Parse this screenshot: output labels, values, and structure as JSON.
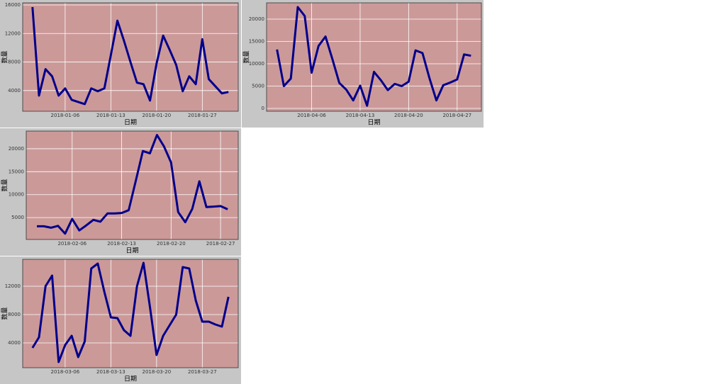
{
  "chart_data": [
    {
      "type": "line",
      "x_label": "日期",
      "y_label": "数量",
      "color": "#00008b",
      "grid": true,
      "x": [
        "2018-01-01",
        "2018-01-02",
        "2018-01-03",
        "2018-01-04",
        "2018-01-05",
        "2018-01-06",
        "2018-01-07",
        "2018-01-08",
        "2018-01-09",
        "2018-01-10",
        "2018-01-11",
        "2018-01-12",
        "2018-01-13",
        "2018-01-14",
        "2018-01-15",
        "2018-01-16",
        "2018-01-17",
        "2018-01-18",
        "2018-01-19",
        "2018-01-20",
        "2018-01-21",
        "2018-01-22",
        "2018-01-23",
        "2018-01-24",
        "2018-01-25",
        "2018-01-26",
        "2018-01-27",
        "2018-01-28",
        "2018-01-29",
        "2018-01-30",
        "2018-01-31"
      ],
      "values": [
        15700,
        3300,
        7000,
        6000,
        3300,
        4300,
        2700,
        2400,
        2100,
        4300,
        3900,
        4300,
        9000,
        13800,
        11000,
        8000,
        5100,
        4900,
        2600,
        7800,
        11700,
        9700,
        7600,
        3900,
        6000,
        4900,
        11200,
        5600,
        4600,
        3600,
        3800
      ],
      "ylim": [
        1100,
        16300
      ],
      "yticks": [
        4000,
        8000,
        12000,
        16000
      ],
      "xticks": [
        "2018-01-06",
        "2018-01-13",
        "2018-01-20",
        "2018-01-27"
      ]
    },
    {
      "type": "line",
      "x_label": "日期",
      "y_label": "数量",
      "color": "#00008b",
      "grid": true,
      "x": [
        "2018-04-01",
        "2018-04-02",
        "2018-04-03",
        "2018-04-04",
        "2018-04-05",
        "2018-04-06",
        "2018-04-07",
        "2018-04-08",
        "2018-04-09",
        "2018-04-10",
        "2018-04-11",
        "2018-04-12",
        "2018-04-13",
        "2018-04-14",
        "2018-04-15",
        "2018-04-16",
        "2018-04-17",
        "2018-04-18",
        "2018-04-19",
        "2018-04-20",
        "2018-04-21",
        "2018-04-22",
        "2018-04-23",
        "2018-04-24",
        "2018-04-25",
        "2018-04-26",
        "2018-04-27",
        "2018-04-28",
        "2018-04-29"
      ],
      "values": [
        13200,
        5000,
        6700,
        22700,
        20700,
        8000,
        14000,
        16100,
        11000,
        5700,
        4200,
        1800,
        5100,
        600,
        8200,
        6300,
        4100,
        5500,
        5000,
        6000,
        13000,
        12400,
        6800,
        1800,
        5200,
        5800,
        6500,
        12100,
        11800
      ],
      "ylim": [
        -630,
        23650
      ],
      "yticks": [
        0,
        5000,
        10000,
        15000,
        20000
      ],
      "xticks": [
        "2018-04-06",
        "2018-04-13",
        "2018-04-20",
        "2018-04-27"
      ]
    },
    {
      "type": "line",
      "x_label": "日期",
      "y_label": "数量",
      "color": "#00008b",
      "grid": true,
      "x": [
        "2018-02-01",
        "2018-02-02",
        "2018-02-03",
        "2018-02-04",
        "2018-02-05",
        "2018-02-06",
        "2018-02-07",
        "2018-02-08",
        "2018-02-09",
        "2018-02-10",
        "2018-02-11",
        "2018-02-12",
        "2018-02-13",
        "2018-02-14",
        "2018-02-15",
        "2018-02-16",
        "2018-02-17",
        "2018-02-18",
        "2018-02-19",
        "2018-02-20",
        "2018-02-21",
        "2018-02-22",
        "2018-02-23",
        "2018-02-24",
        "2018-02-25",
        "2018-02-26",
        "2018-02-27",
        "2018-02-28"
      ],
      "values": [
        3100,
        3100,
        2800,
        3200,
        1500,
        4700,
        2200,
        3300,
        4500,
        4100,
        5900,
        5900,
        6000,
        6600,
        13000,
        19500,
        19000,
        23000,
        20500,
        17000,
        6200,
        4000,
        6900,
        12900,
        7300,
        7400,
        7500,
        6800
      ],
      "ylim": [
        230,
        23850
      ],
      "yticks": [
        5000,
        10000,
        15000,
        20000
      ],
      "xticks": [
        "2018-02-06",
        "2018-02-13",
        "2018-02-20",
        "2018-02-27"
      ]
    },
    {
      "type": "line",
      "x_label": "日期",
      "y_label": "数量",
      "color": "#00008b",
      "grid": true,
      "x": [
        "2018-03-01",
        "2018-03-02",
        "2018-03-03",
        "2018-03-04",
        "2018-03-05",
        "2018-03-06",
        "2018-03-07",
        "2018-03-08",
        "2018-03-09",
        "2018-03-10",
        "2018-03-11",
        "2018-03-12",
        "2018-03-13",
        "2018-03-14",
        "2018-03-15",
        "2018-03-16",
        "2018-03-17",
        "2018-03-18",
        "2018-03-19",
        "2018-03-20",
        "2018-03-21",
        "2018-03-22",
        "2018-03-23",
        "2018-03-24",
        "2018-03-25",
        "2018-03-26",
        "2018-03-27",
        "2018-03-28",
        "2018-03-29",
        "2018-03-30",
        "2018-03-31"
      ],
      "values": [
        3300,
        4800,
        12000,
        13500,
        1300,
        3700,
        5000,
        2000,
        4200,
        14500,
        15200,
        11200,
        7600,
        7500,
        5800,
        5000,
        12000,
        15300,
        9000,
        2300,
        5000,
        6500,
        8000,
        14700,
        14500,
        10000,
        7000,
        7000,
        6600,
        6300,
        10500
      ],
      "ylim": [
        500,
        15800
      ],
      "yticks": [
        4000,
        8000,
        12000
      ],
      "xticks": [
        "2018-03-06",
        "2018-03-13",
        "2018-03-20",
        "2018-03-27"
      ]
    }
  ]
}
